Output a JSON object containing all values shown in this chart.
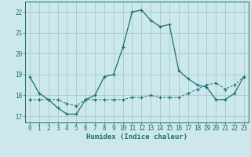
{
  "title": "",
  "xlabel": "Humidex (Indice chaleur)",
  "background_color": "#cce8ec",
  "grid_color": "#aacdd4",
  "line_color": "#1a7070",
  "xlim": [
    -0.5,
    23.5
  ],
  "ylim": [
    16.7,
    22.5
  ],
  "yticks": [
    17,
    18,
    19,
    20,
    21,
    22
  ],
  "xticks": [
    0,
    1,
    2,
    3,
    4,
    5,
    6,
    7,
    8,
    9,
    10,
    11,
    12,
    13,
    14,
    15,
    16,
    17,
    18,
    19,
    20,
    21,
    22,
    23
  ],
  "line1_x": [
    0,
    1,
    2,
    3,
    4,
    5,
    6,
    7,
    8,
    9,
    10,
    11,
    12,
    13,
    14,
    15,
    16,
    17,
    18,
    19,
    20,
    21,
    22,
    23
  ],
  "line1_y": [
    18.9,
    18.1,
    17.8,
    17.4,
    17.1,
    17.1,
    17.8,
    18.0,
    18.9,
    19.0,
    20.3,
    22.0,
    22.1,
    21.6,
    21.3,
    21.4,
    19.2,
    18.8,
    18.5,
    18.4,
    17.8,
    17.8,
    18.1,
    18.9
  ],
  "line2_x": [
    0,
    1,
    2,
    3,
    4,
    5,
    6,
    7,
    8,
    9,
    10,
    11,
    12,
    13,
    14,
    15,
    16,
    17,
    18,
    19,
    20,
    21,
    22,
    23
  ],
  "line2_y": [
    17.8,
    17.8,
    17.8,
    17.8,
    17.6,
    17.5,
    17.8,
    17.8,
    17.8,
    17.8,
    17.8,
    17.9,
    17.9,
    18.0,
    17.9,
    17.9,
    17.9,
    18.1,
    18.3,
    18.5,
    18.6,
    18.3,
    18.5,
    18.9
  ]
}
